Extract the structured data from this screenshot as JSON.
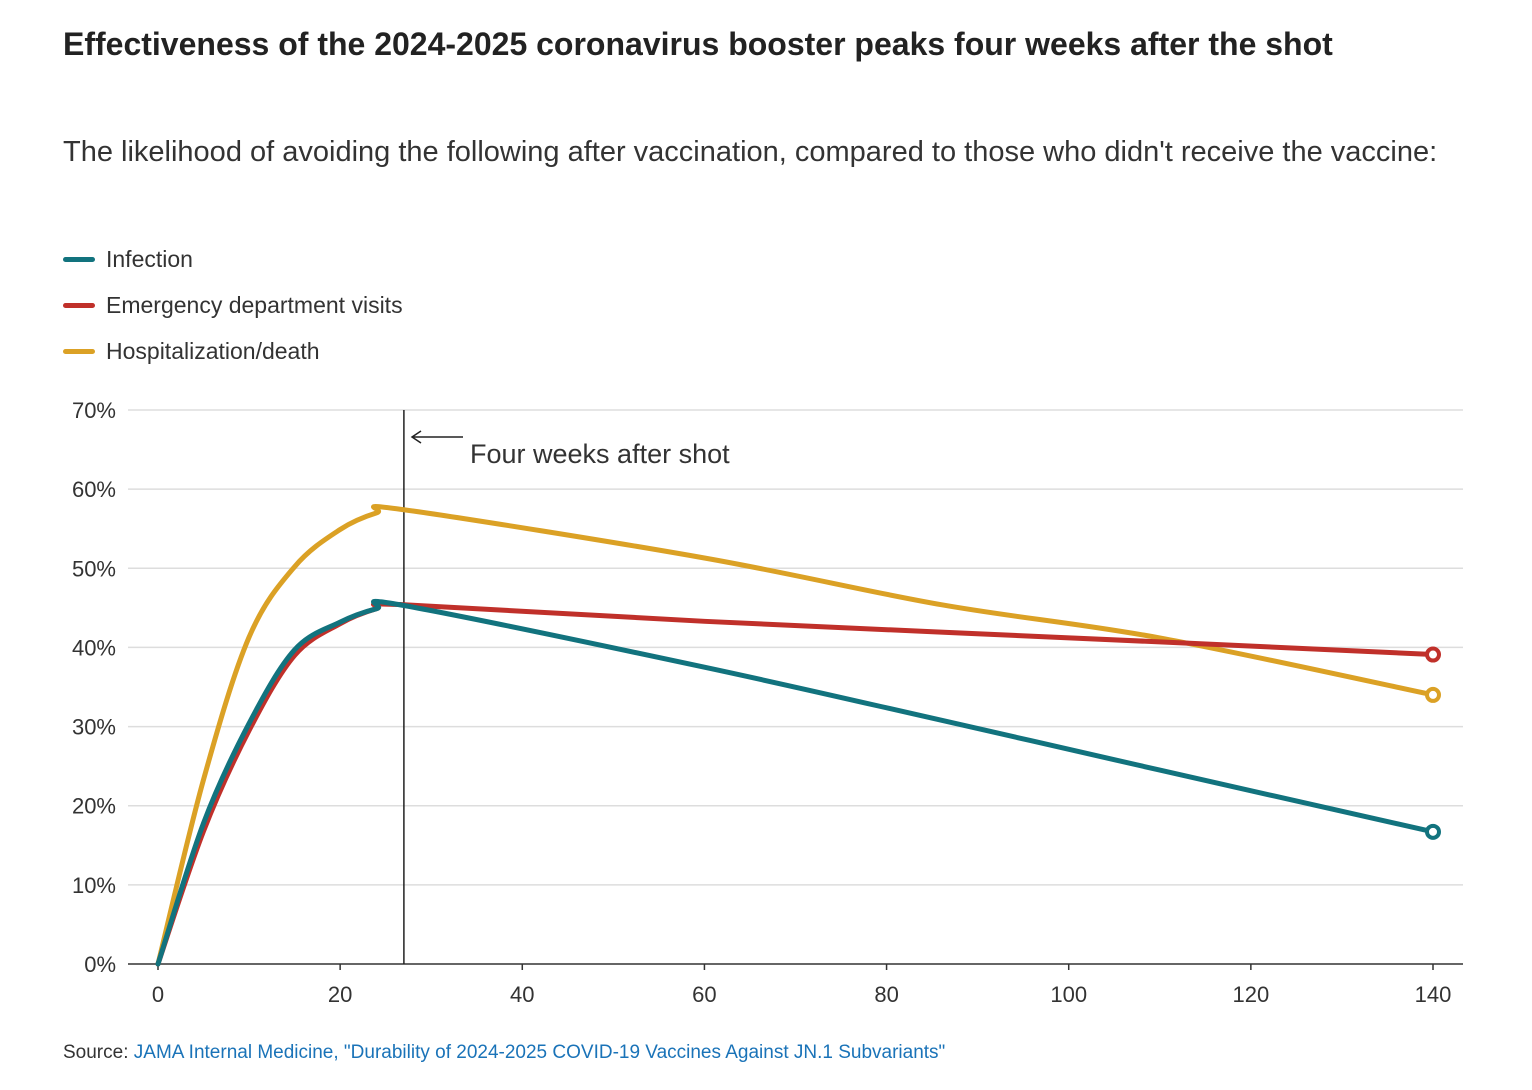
{
  "chart_data": {
    "type": "line",
    "title": "Effectiveness of the 2024-2025 coronavirus booster peaks four weeks after the shot",
    "subtitle": "The likelihood of avoiding the following after vaccination, compared to those who didn't receive the vaccine:",
    "xlabel": "",
    "ylabel": "",
    "xlim": [
      0,
      140
    ],
    "ylim": [
      0,
      70
    ],
    "x_ticks": [
      0,
      20,
      40,
      60,
      80,
      100,
      120,
      140
    ],
    "x_tick_labels": [
      "0",
      "20",
      "40",
      "60",
      "80",
      "100",
      "120",
      "140"
    ],
    "y_ticks": [
      0,
      10,
      20,
      30,
      40,
      50,
      60,
      70
    ],
    "y_tick_labels": [
      "0%",
      "10%",
      "20%",
      "30%",
      "40%",
      "50%",
      "60%",
      "70%"
    ],
    "grid": true,
    "legend_placement": "top-left",
    "annotation": {
      "x": 27,
      "label": "Four weeks after shot"
    },
    "series": [
      {
        "name": "Infection",
        "color": "#12737e",
        "x": [
          0,
          5,
          10,
          15,
          20,
          24,
          27,
          60,
          86,
          110,
          140
        ],
        "y": [
          0,
          17.8,
          30.4,
          39.7,
          43.2,
          44.9,
          45.3,
          37.5,
          30.8,
          24.5,
          16.7
        ]
      },
      {
        "name": "Emergency department visits",
        "color": "#c0302a",
        "x": [
          0,
          5,
          10,
          15,
          20,
          24,
          27,
          60,
          110,
          140
        ],
        "y": [
          0,
          16.8,
          29.5,
          39.0,
          43.0,
          44.9,
          45.4,
          43.3,
          40.7,
          39.1
        ]
      },
      {
        "name": "Hospitalization/death",
        "color": "#dba125",
        "x": [
          0,
          5,
          10,
          15,
          20,
          24,
          27,
          60,
          86,
          110,
          140
        ],
        "y": [
          0,
          23.3,
          41.3,
          50.2,
          54.9,
          57.0,
          57.4,
          51.3,
          45.4,
          41.2,
          34.0
        ]
      }
    ]
  },
  "source": {
    "prefix": "Source: ",
    "link_text": "JAMA Internal Medicine, \"Durability of 2024-2025 COVID-19 Vaccines Against JN.1 Subvariants\""
  }
}
